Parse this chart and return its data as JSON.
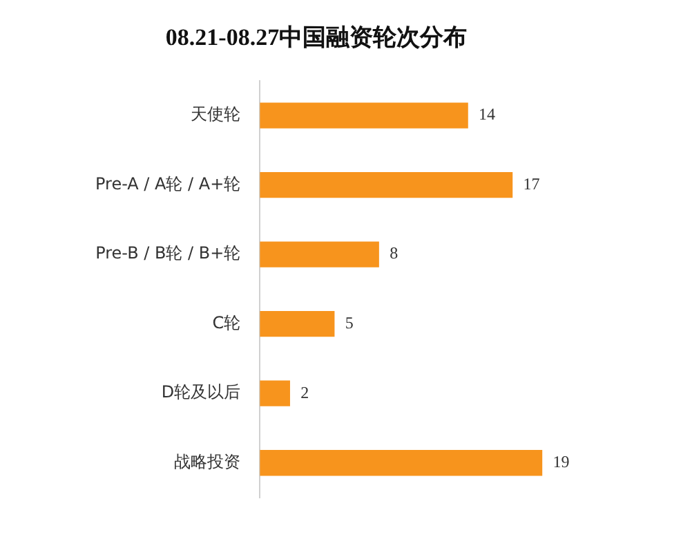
{
  "chart_data": {
    "type": "bar",
    "orientation": "horizontal",
    "title": "08.21-08.27中国融资轮次分布",
    "categories": [
      "天使轮",
      "Pre-A / A轮 / A+轮",
      "Pre-B / B轮 / B+轮",
      "C轮",
      "D轮及以后",
      "战略投资"
    ],
    "values": [
      14,
      17,
      8,
      5,
      2,
      19
    ],
    "color": "#f7941d",
    "data_labels": true,
    "tick_labels": "y",
    "grid": false,
    "legend": false
  }
}
